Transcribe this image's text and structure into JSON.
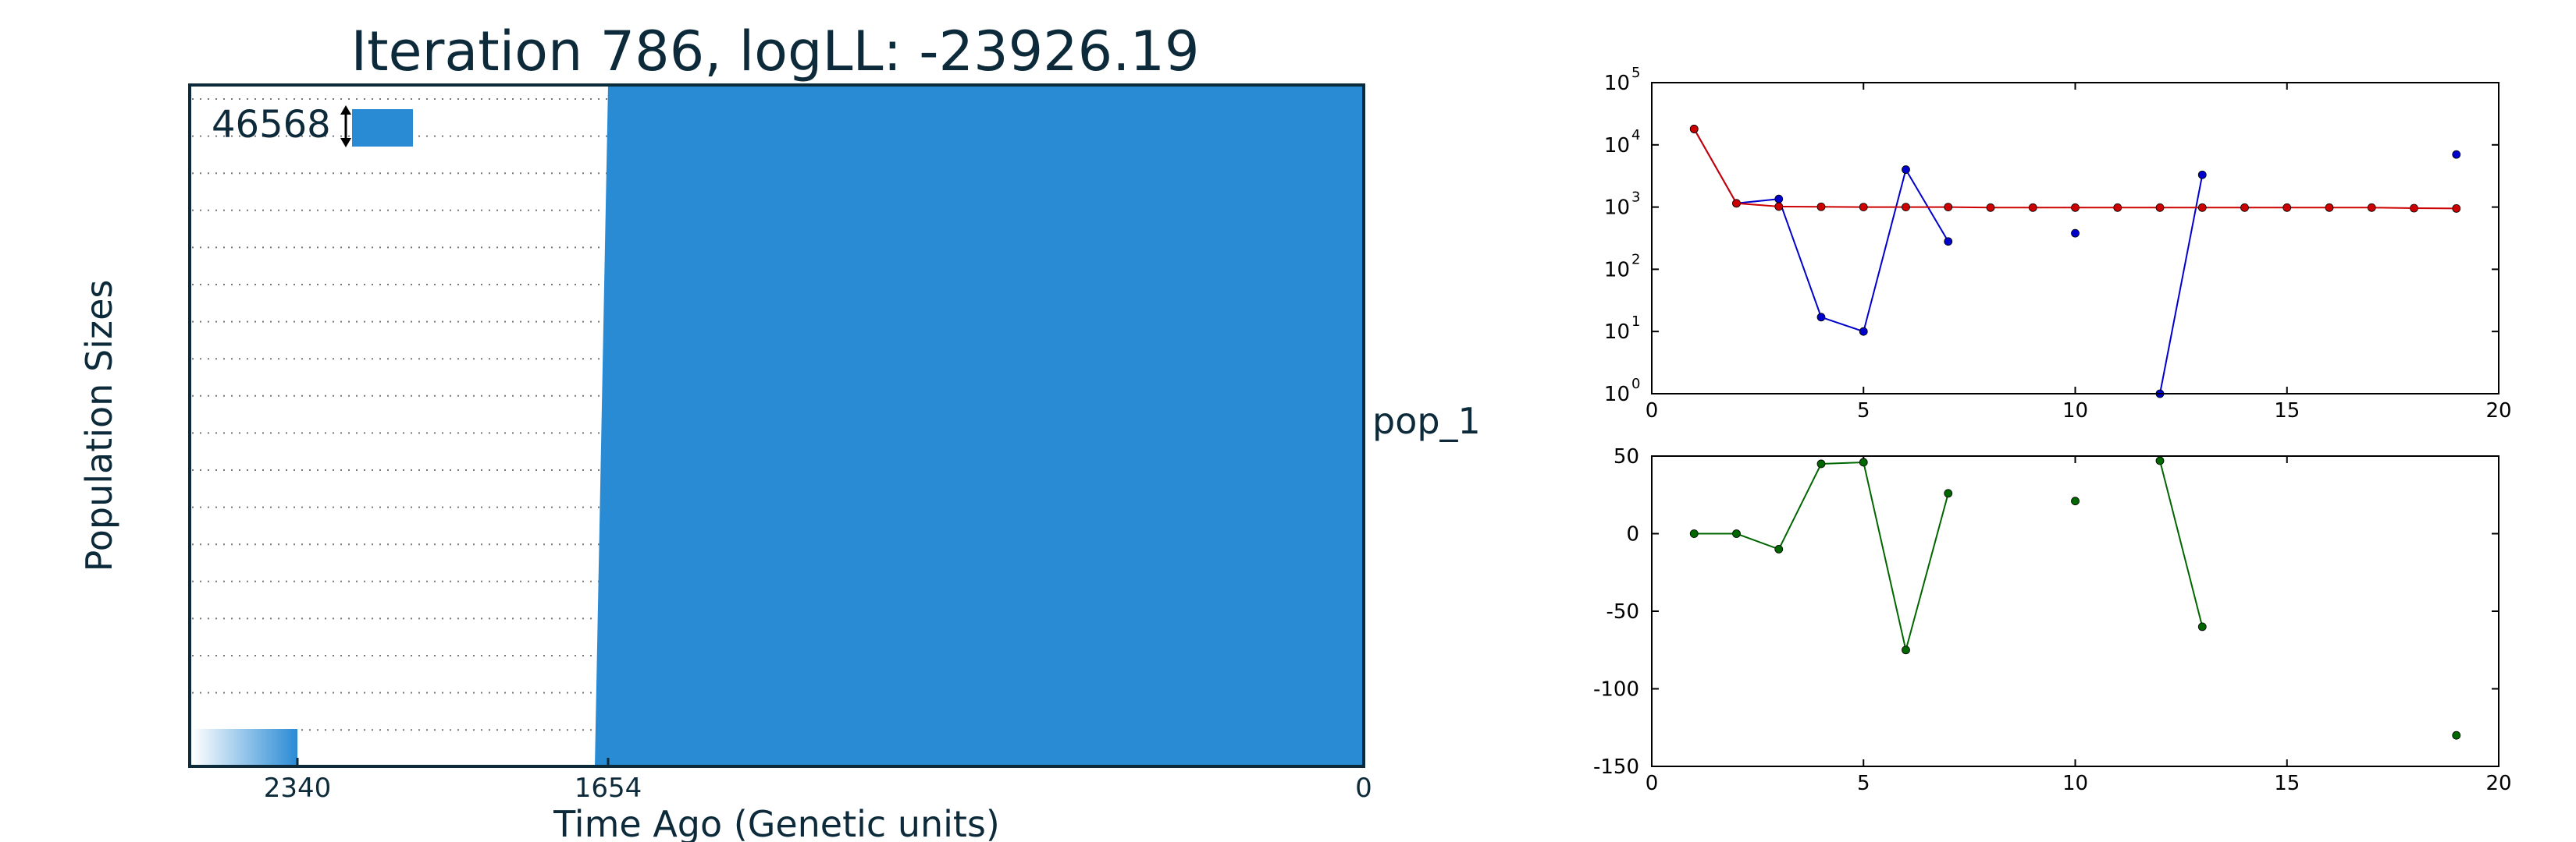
{
  "chart_data": [
    {
      "type": "area",
      "title": "Iteration 786, logLL:  -23926.19",
      "xlabel": "Time Ago (Genetic units)",
      "ylabel": "Population Sizes",
      "xtick_labels": [
        "2340",
        "1654",
        "0"
      ],
      "series": [
        {
          "name": "pop_1",
          "label": "pop_1",
          "population_size": 46568
        }
      ],
      "scale_indicator_value": "46568",
      "breakpoint_time": 1654,
      "xlim_labels": [
        "2340",
        "0"
      ],
      "grid": true,
      "colors": {
        "fill": "#2a8bd5",
        "frame": "#0b2a3a",
        "text": "#0d2a3a"
      }
    },
    {
      "type": "line",
      "yscale": "log",
      "xlim": [
        0,
        20
      ],
      "ylim": [
        1,
        100000
      ],
      "xticks": [
        0,
        5,
        10,
        15,
        20
      ],
      "yticks": [
        1,
        10,
        100,
        1000,
        10000,
        100000
      ],
      "ytick_exponents": [
        "0",
        "1",
        "2",
        "3",
        "4",
        "5"
      ],
      "ytick_base": "10",
      "series": [
        {
          "color": "#0000cc",
          "points": [
            [
              1,
              18000
            ],
            [
              2,
              1150
            ],
            [
              3,
              1350
            ],
            [
              4,
              17
            ],
            [
              5,
              10
            ],
            [
              6,
              4000
            ],
            [
              7,
              280
            ],
            [
              10,
              380
            ],
            [
              12,
              1
            ],
            [
              13,
              3300
            ],
            [
              19,
              7000
            ]
          ],
          "segments": [
            [
              1,
              2,
              3,
              4,
              5,
              6,
              7
            ],
            [
              12,
              13
            ]
          ]
        },
        {
          "color": "#cc0000",
          "points": [
            [
              1,
              18000
            ],
            [
              2,
              1150
            ],
            [
              3,
              1020
            ],
            [
              4,
              1010
            ],
            [
              5,
              1000
            ],
            [
              6,
              1000
            ],
            [
              7,
              1000
            ],
            [
              8,
              980
            ],
            [
              9,
              980
            ],
            [
              10,
              980
            ],
            [
              11,
              980
            ],
            [
              12,
              980
            ],
            [
              13,
              980
            ],
            [
              14,
              980
            ],
            [
              15,
              980
            ],
            [
              16,
              980
            ],
            [
              17,
              980
            ],
            [
              18,
              960
            ],
            [
              19,
              950
            ]
          ],
          "segments": [
            [
              1,
              2,
              3,
              4,
              5,
              6,
              7,
              8,
              9,
              10,
              11,
              12,
              13,
              14,
              15,
              16,
              17,
              18,
              19
            ]
          ]
        }
      ]
    },
    {
      "type": "line",
      "xlim": [
        0,
        20
      ],
      "ylim": [
        -150,
        50
      ],
      "xticks": [
        0,
        5,
        10,
        15,
        20
      ],
      "yticks": [
        -150,
        -100,
        -50,
        0,
        50
      ],
      "series": [
        {
          "color": "#006600",
          "points": [
            [
              1,
              0
            ],
            [
              2,
              0
            ],
            [
              3,
              -10
            ],
            [
              4,
              45
            ],
            [
              5,
              46
            ],
            [
              6,
              -75
            ],
            [
              7,
              26
            ],
            [
              10,
              21
            ],
            [
              12,
              47
            ],
            [
              13,
              -60
            ],
            [
              19,
              -130
            ]
          ],
          "segments": [
            [
              1,
              2,
              3,
              4,
              5,
              6,
              7
            ],
            [
              12,
              13
            ]
          ]
        }
      ]
    }
  ]
}
